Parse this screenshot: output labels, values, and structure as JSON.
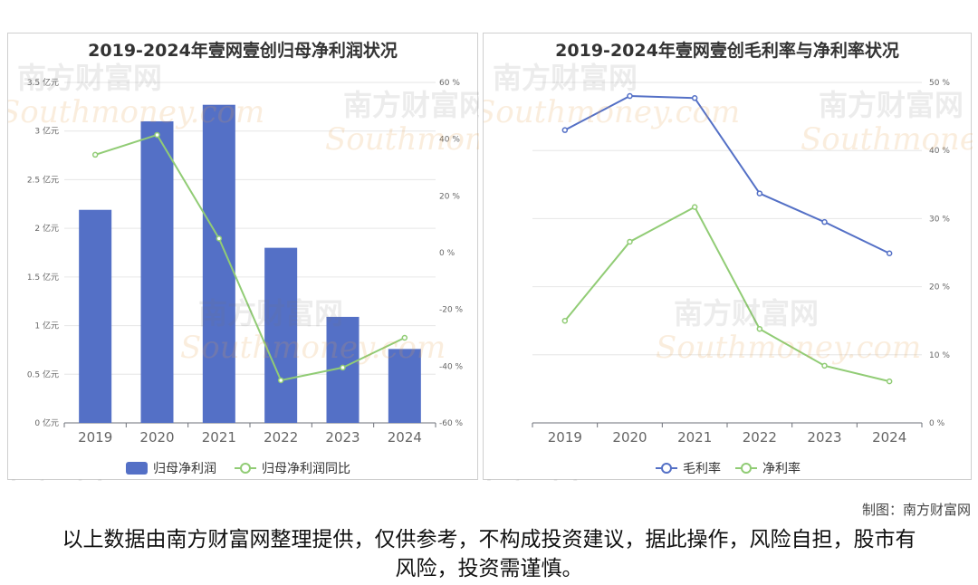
{
  "chart_data": [
    {
      "type": "bar",
      "title": "2019-2024年壹网壹创归母净利润状况",
      "categories": [
        "2019",
        "2020",
        "2021",
        "2022",
        "2023",
        "2024"
      ],
      "series": [
        {
          "name": "归母净利润",
          "type": "bar",
          "values": [
            2.19,
            3.1,
            3.27,
            1.8,
            1.09,
            0.76
          ],
          "unit": "亿元",
          "color": "#5470c6"
        },
        {
          "name": "归母净利润同比",
          "type": "line",
          "axis": "right",
          "values": [
            34.5,
            41.5,
            5.0,
            -45.0,
            -40.5,
            -30.0
          ],
          "unit": "%",
          "color": "#91cc75"
        }
      ],
      "ylim": [
        0,
        3.5
      ],
      "yticks": [
        "0 亿元",
        "0.5 亿元",
        "1 亿元",
        "1.5 亿元",
        "2 亿元",
        "2.5 亿元",
        "3 亿元",
        "3.5 亿元"
      ],
      "y2lim": [
        -60,
        60
      ],
      "y2ticks": [
        "-60 %",
        "-40 %",
        "-20 %",
        "0 %",
        "20 %",
        "40 %",
        "60 %"
      ],
      "legend": "bottom",
      "grid": true
    },
    {
      "type": "line",
      "title": "2019-2024年壹网壹创毛利率与净利率状况",
      "categories": [
        "2019",
        "2020",
        "2021",
        "2022",
        "2023",
        "2024"
      ],
      "series": [
        {
          "name": "毛利率",
          "values": [
            43.0,
            48.0,
            47.7,
            33.7,
            29.5,
            24.9
          ],
          "unit": "%",
          "color": "#5470c6"
        },
        {
          "name": "净利率",
          "values": [
            15.0,
            26.6,
            31.7,
            13.8,
            8.4,
            6.1
          ],
          "unit": "%",
          "color": "#91cc75"
        }
      ],
      "ylim": [
        0,
        50
      ],
      "yticks": [
        "0 %",
        "10 %",
        "20 %",
        "30 %",
        "40 %",
        "50 %"
      ],
      "legend": "bottom",
      "grid": true
    }
  ],
  "watermark": {
    "cn": "南方财富网",
    "en": "Southmoney.com"
  },
  "credit": "制图：南方财富网",
  "disclaimer": "以上数据由南方财富网整理提供，仅供参考，不构成投资建议，据此操作，风险自担，股市有风险，投资需谨慎。"
}
